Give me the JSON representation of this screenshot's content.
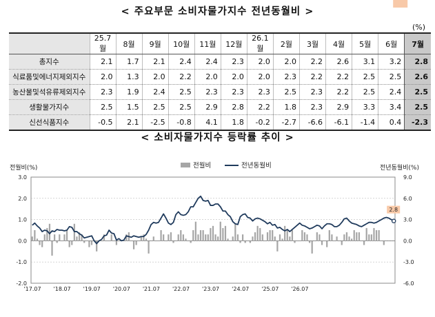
{
  "table_title": "< 주요부문 소비자물가지수 전년동월비 >",
  "unit": "(%)",
  "table": {
    "columns": [
      "25.7월",
      "8월",
      "9월",
      "10월",
      "11월",
      "12월",
      "26.1월",
      "2월",
      "3월",
      "4월",
      "5월",
      "6월",
      "7월"
    ],
    "rows": [
      {
        "label": "총지수",
        "values": [
          "2.1",
          "1.7",
          "2.1",
          "2.4",
          "2.4",
          "2.3",
          "2.0",
          "2.0",
          "2.2",
          "2.6",
          "3.1",
          "3.2",
          "2.8"
        ]
      },
      {
        "label": "식료품및에너지제외지수",
        "values": [
          "2.0",
          "1.3",
          "2.0",
          "2.2",
          "2.0",
          "2.0",
          "2.0",
          "2.3",
          "2.2",
          "2.2",
          "2.5",
          "2.5",
          "2.6"
        ]
      },
      {
        "label": "농산물및석유류제외지수",
        "values": [
          "2.3",
          "1.9",
          "2.4",
          "2.5",
          "2.3",
          "2.3",
          "2.3",
          "2.5",
          "2.3",
          "2.2",
          "2.5",
          "2.4",
          "2.5"
        ]
      },
      {
        "label": "생활물가지수",
        "values": [
          "2.5",
          "1.5",
          "2.5",
          "2.5",
          "2.9",
          "2.8",
          "2.2",
          "1.8",
          "2.3",
          "2.9",
          "3.3",
          "3.4",
          "2.5"
        ]
      },
      {
        "label": "신선식품지수",
        "values": [
          "-0.5",
          "2.1",
          "-2.5",
          "-0.8",
          "4.1",
          "1.8",
          "-0.2",
          "-2.7",
          "-6.6",
          "-6.1",
          "-1.4",
          "0.4",
          "-2.3"
        ]
      }
    ]
  },
  "chart_title": "< 소비자물가지수 등락률 추이 >",
  "colors": {
    "bar": "#a6a6a6",
    "line": "#1f3a5c",
    "badge": "#f8c9a8",
    "grid": "#bbbbbb"
  },
  "chart_data": {
    "type": "bar",
    "title": "< 소비자물가지수 등락률 추이 >",
    "ylabel": "전월비(%)",
    "y2label": "전년동월비(%)",
    "ylim": [
      -2.0,
      3.0
    ],
    "yticks": [
      "3.0",
      "2.0",
      "1.0",
      "0.0",
      "-1.0",
      "-2.0"
    ],
    "y2lim": [
      -6.0,
      9.0
    ],
    "y2ticks": [
      "9.0",
      "6.0",
      "3.0",
      "0.0",
      "-3.0",
      "-6.0"
    ],
    "xticks": [
      "'17.07",
      "'18.07",
      "'19.07",
      "'20.07",
      "'21.07",
      "'22.07",
      "'23.07",
      "'24.07",
      "'25.07",
      "'26.07"
    ],
    "legend": [
      "전월비",
      "전년동월비"
    ],
    "legend_position": "top-center",
    "start": "2017-07",
    "series": [
      {
        "name": "전월비",
        "type": "bar",
        "axis": "left",
        "values": [
          0.2,
          0.5,
          0.1,
          -0.2,
          -0.3,
          0.3,
          0.6,
          0.8,
          -0.7,
          0.3,
          -0.1,
          0.3,
          0.0,
          0.3,
          0.5,
          -0.3,
          -0.2,
          0.8,
          0.2,
          0.4,
          0.3,
          -0.1,
          0.0,
          -0.3,
          -0.2,
          0.0,
          -0.5,
          0.0,
          0.0,
          0.3,
          0.0,
          0.0,
          0.3,
          0.0,
          -0.2,
          0.0,
          0.0,
          0.0,
          0.3,
          0.4,
          0.0,
          -0.4,
          -0.2,
          0.0,
          0.2,
          0.3,
          0.1,
          -0.6,
          0.0,
          0.2,
          0.0,
          0.0,
          0.5,
          0.3,
          0.0,
          0.3,
          0.4,
          -0.1,
          0.0,
          0.3,
          0.5,
          0.3,
          0.1,
          0.0,
          -0.1,
          0.5,
          0.9,
          0.3,
          0.5,
          0.5,
          0.3,
          0.3,
          0.6,
          0.7,
          0.3,
          0.2,
          0.9,
          0.6,
          0.7,
          0.1,
          0.0,
          0.2,
          0.8,
          0.3,
          -0.1,
          0.3,
          -0.1,
          0.0,
          -0.1,
          0.2,
          0.4,
          0.7,
          0.6,
          0.3,
          0.0,
          0.4,
          0.5,
          0.5,
          0.2,
          -0.5,
          0.3,
          0.1,
          0.7,
          0.5,
          0.2,
          0.5,
          -0.1,
          0.0,
          0.0,
          0.5,
          0.4,
          0.3,
          -0.1,
          -0.6,
          0.0,
          0.4,
          0.3,
          -0.2,
          0.0,
          -0.3,
          0.5,
          0.3,
          0.0,
          0.2,
          0.0,
          -0.2,
          0.3,
          0.4,
          0.2,
          0.1,
          0.5,
          0.4,
          0.4,
          0.0,
          -0.2,
          0.6,
          0.3,
          0.3,
          0.6,
          0.5,
          0.5,
          0.0,
          -0.2
        ]
      },
      {
        "name": "전년동월비",
        "type": "line",
        "axis": "right",
        "values": [
          2.2,
          2.5,
          2.1,
          1.8,
          1.3,
          1.5,
          1.4,
          1.0,
          1.4,
          1.3,
          1.6,
          1.5,
          1.5,
          1.4,
          1.5,
          2.0,
          1.9,
          1.3,
          1.3,
          1.0,
          0.8,
          0.4,
          0.5,
          0.6,
          0.7,
          0.0,
          -0.4,
          0.0,
          0.2,
          0.7,
          0.8,
          1.5,
          1.1,
          1.0,
          0.1,
          0.3,
          0.0,
          0.1,
          0.7,
          0.6,
          0.5,
          0.7,
          0.6,
          0.5,
          0.6,
          0.6,
          0.9,
          1.5,
          2.3,
          2.6,
          2.5,
          2.6,
          3.2,
          3.8,
          3.2,
          2.5,
          2.3,
          2.6,
          3.7,
          4.1,
          3.7,
          3.6,
          3.7,
          4.1,
          4.8,
          4.8,
          5.4,
          6.0,
          6.3,
          5.7,
          5.6,
          5.7,
          5.0,
          5.0,
          5.2,
          5.2,
          4.8,
          4.2,
          4.2,
          3.7,
          3.4,
          2.7,
          2.4,
          2.3,
          3.4,
          3.7,
          3.8,
          3.3,
          3.2,
          2.8,
          3.1,
          3.2,
          3.1,
          2.9,
          2.7,
          2.4,
          2.6,
          2.2,
          2.3,
          1.8,
          1.9,
          1.6,
          1.4,
          1.6,
          1.3,
          1.6,
          1.9,
          2.2,
          2.5,
          2.2,
          2.1,
          1.9,
          1.7,
          1.8,
          2.0,
          2.2,
          2.1,
          1.7,
          2.1,
          2.4,
          2.4,
          2.3,
          2.0,
          2.0,
          2.2,
          2.6,
          3.1,
          3.2,
          2.8,
          2.5,
          2.4,
          2.3,
          2.1,
          2.0,
          2.2,
          2.4,
          2.6,
          2.6,
          2.5,
          2.6,
          2.8,
          3.0,
          3.2,
          3.3,
          3.2,
          3.0,
          2.8
        ],
        "last_label": "2.8"
      }
    ],
    "last_bar_label": "-0.2"
  }
}
